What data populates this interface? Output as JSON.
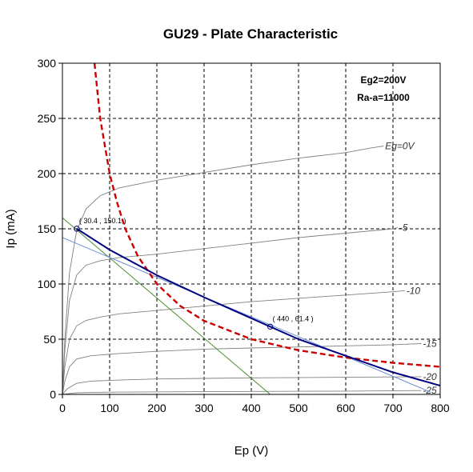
{
  "chart_data": {
    "type": "line",
    "title": "GU29 - Plate Characteristic",
    "xlabel": "Ep (V)",
    "ylabel": "Ip (mA)",
    "xlim": [
      0,
      800
    ],
    "ylim": [
      0,
      300
    ],
    "xticks": [
      "0",
      "100",
      "200",
      "300",
      "400",
      "500",
      "600",
      "700",
      "800"
    ],
    "yticks": [
      "0",
      "50",
      "100",
      "150",
      "200",
      "250",
      "300"
    ],
    "grid": true,
    "annotations": [
      "Eg2=200V",
      "Ra-a=11000"
    ],
    "colors": {
      "curves": "#808080",
      "load_line": "#000080",
      "dissipation": "#cc0000",
      "tangent": "#6a8fd0",
      "green_line": "#4a8a2a",
      "grid": "#000000"
    },
    "plate_curves": [
      {
        "label": "Eg=0V",
        "points": [
          [
            0,
            0
          ],
          [
            5,
            50
          ],
          [
            15,
            110
          ],
          [
            30,
            148
          ],
          [
            50,
            168
          ],
          [
            80,
            180
          ],
          [
            120,
            187
          ],
          [
            200,
            194
          ],
          [
            300,
            201
          ],
          [
            400,
            208
          ],
          [
            500,
            214
          ],
          [
            600,
            219
          ],
          [
            650,
            223
          ],
          [
            680,
            225
          ]
        ]
      },
      {
        "label": "-5",
        "points": [
          [
            0,
            0
          ],
          [
            5,
            40
          ],
          [
            15,
            85
          ],
          [
            30,
            108
          ],
          [
            50,
            117
          ],
          [
            80,
            121
          ],
          [
            120,
            124
          ],
          [
            200,
            127
          ],
          [
            300,
            132
          ],
          [
            400,
            137
          ],
          [
            500,
            142
          ],
          [
            600,
            146
          ],
          [
            700,
            150
          ],
          [
            710,
            151
          ]
        ]
      },
      {
        "label": "-10",
        "points": [
          [
            0,
            0
          ],
          [
            5,
            25
          ],
          [
            15,
            50
          ],
          [
            30,
            62
          ],
          [
            50,
            67
          ],
          [
            80,
            70
          ],
          [
            120,
            73
          ],
          [
            200,
            76
          ],
          [
            300,
            80
          ],
          [
            400,
            84
          ],
          [
            500,
            87
          ],
          [
            600,
            90
          ],
          [
            700,
            93
          ],
          [
            725,
            94
          ]
        ]
      },
      {
        "label": "-15",
        "points": [
          [
            0,
            0
          ],
          [
            5,
            12
          ],
          [
            15,
            25
          ],
          [
            30,
            32
          ],
          [
            60,
            35
          ],
          [
            120,
            37
          ],
          [
            200,
            39
          ],
          [
            300,
            41
          ],
          [
            400,
            42
          ],
          [
            500,
            43
          ],
          [
            600,
            44
          ],
          [
            700,
            45
          ],
          [
            760,
            46
          ]
        ]
      },
      {
        "label": "-20",
        "points": [
          [
            0,
            0
          ],
          [
            10,
            5
          ],
          [
            30,
            10
          ],
          [
            60,
            12
          ],
          [
            120,
            13
          ],
          [
            200,
            14
          ],
          [
            400,
            15
          ],
          [
            600,
            15.5
          ],
          [
            760,
            16
          ]
        ]
      },
      {
        "label": "-25",
        "points": [
          [
            0,
            0
          ],
          [
            30,
            1.5
          ],
          [
            100,
            2
          ],
          [
            300,
            2.5
          ],
          [
            600,
            3
          ],
          [
            760,
            3.5
          ]
        ]
      }
    ],
    "load_line": [
      [
        30.4,
        150.1
      ],
      [
        100,
        131
      ],
      [
        200,
        108
      ],
      [
        300,
        88
      ],
      [
        440,
        61.4
      ],
      [
        500,
        50
      ],
      [
        600,
        35
      ],
      [
        700,
        20
      ],
      [
        800,
        8
      ]
    ],
    "dissipation_curve": [
      [
        68,
        300
      ],
      [
        80,
        250
      ],
      [
        100,
        200
      ],
      [
        115,
        175
      ],
      [
        133,
        150
      ],
      [
        160,
        125
      ],
      [
        200,
        100
      ],
      [
        250,
        80
      ],
      [
        300,
        66.7
      ],
      [
        400,
        50
      ],
      [
        500,
        40
      ],
      [
        600,
        33.3
      ],
      [
        700,
        28.6
      ],
      [
        800,
        25
      ]
    ],
    "tangent_line": [
      [
        0,
        142
      ],
      [
        780,
        2
      ]
    ],
    "green_line": [
      [
        0,
        160
      ],
      [
        440,
        0
      ]
    ],
    "operating_points": [
      {
        "label": "( 30.4 , 150.1 )",
        "x": 30.4,
        "y": 150.1
      },
      {
        "label": "( 440 , 61.4 )",
        "x": 440,
        "y": 61.4
      }
    ]
  }
}
